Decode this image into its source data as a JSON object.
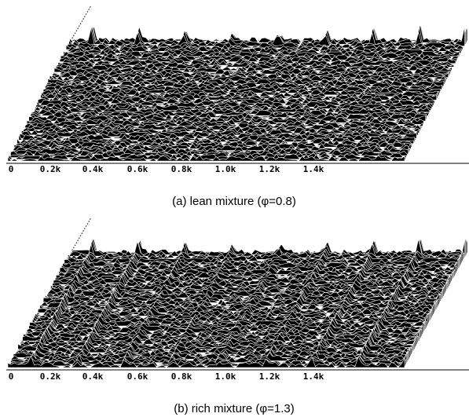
{
  "panels": [
    {
      "tick_labels": [
        "0",
        "0.2k",
        "0.4k",
        "0.6k",
        "0.8k",
        "1.0k",
        "1.2k",
        "1.4k"
      ],
      "caption": "(a) lean mixture  (φ=0.8)"
    },
    {
      "tick_labels": [
        "0",
        "0.2k",
        "0.4k",
        "0.6k",
        "0.8k",
        "1.0k",
        "1.2k",
        "1.4k"
      ],
      "caption": "(b) rich mixture (φ=1.3)"
    }
  ]
}
